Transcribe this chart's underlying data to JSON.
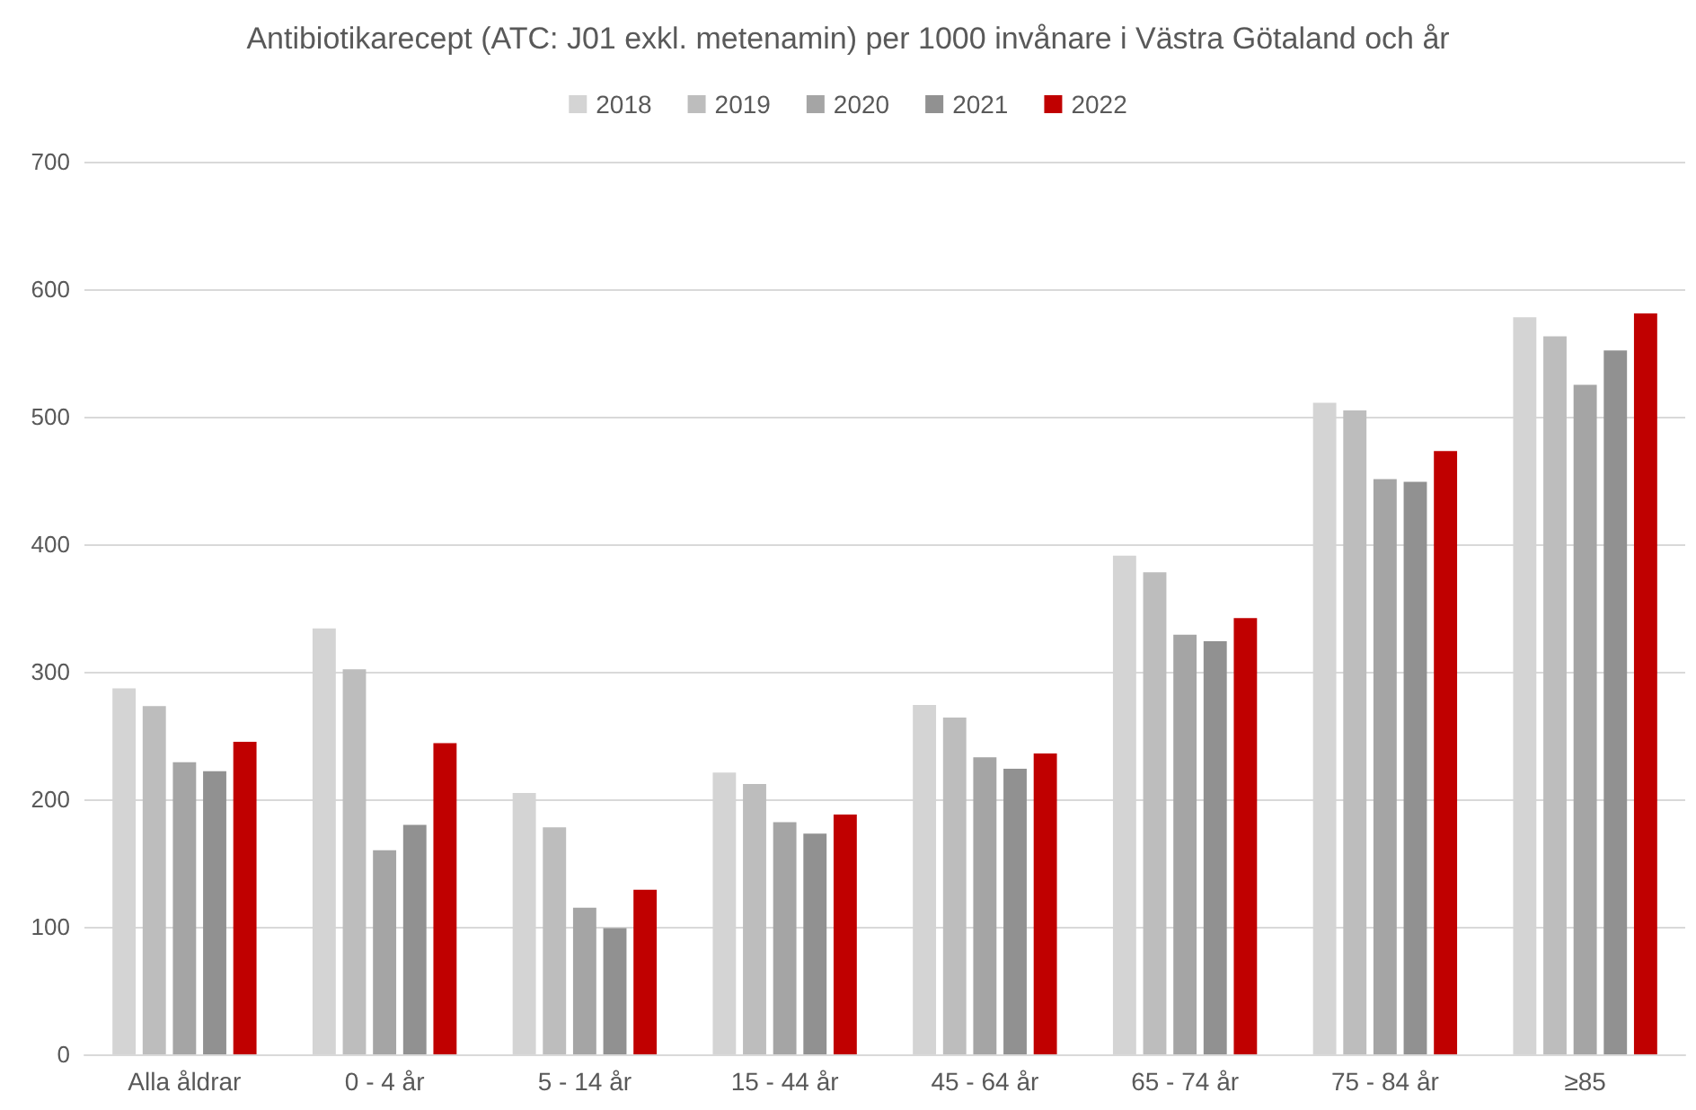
{
  "chart_data": {
    "type": "bar",
    "title": "Antibiotikarecept (ATC: J01 exkl. metenamin) per 1000 invånare i Västra Götaland och år",
    "categories": [
      "Alla åldrar",
      "0 - 4 år",
      "5 - 14 år",
      "15 - 44 år",
      "45 - 64 år",
      "65 - 74 år",
      "75 - 84 år",
      "≥85"
    ],
    "series": [
      {
        "name": "2018",
        "color": "#d4d4d4",
        "values": [
          287,
          334,
          205,
          221,
          274,
          391,
          511,
          578
        ]
      },
      {
        "name": "2019",
        "color": "#bdbdbd",
        "values": [
          273,
          302,
          178,
          212,
          264,
          378,
          505,
          563
        ]
      },
      {
        "name": "2020",
        "color": "#a5a5a5",
        "values": [
          229,
          160,
          115,
          182,
          233,
          329,
          451,
          525
        ]
      },
      {
        "name": "2021",
        "color": "#919191",
        "values": [
          222,
          180,
          99,
          173,
          224,
          324,
          449,
          552
        ]
      },
      {
        "name": "2022",
        "color": "#c00000",
        "values": [
          245,
          244,
          129,
          188,
          236,
          342,
          473,
          581
        ]
      }
    ],
    "ylim": [
      0,
      700
    ],
    "yticks": [
      0,
      100,
      200,
      300,
      400,
      500,
      600,
      700
    ],
    "grid": "y",
    "legend": "top"
  }
}
